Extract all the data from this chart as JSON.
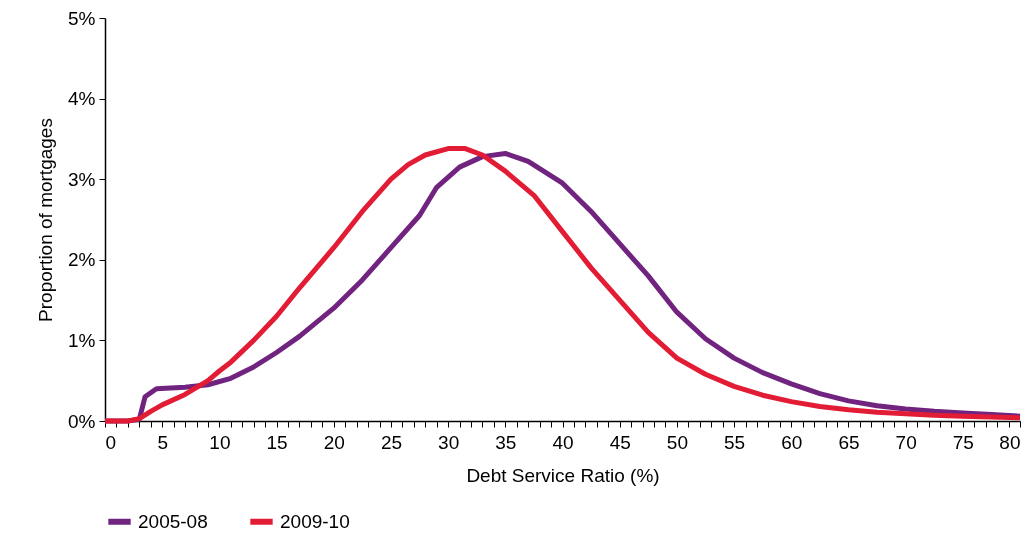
{
  "chart_data": {
    "type": "line",
    "xlabel": "Debt Service Ratio (%)",
    "ylabel": "Proportion of mortgages",
    "xlim": [
      0,
      80
    ],
    "ylim": [
      0,
      5
    ],
    "xticks": [
      0,
      {
        "value": 1,
        "label": null
      },
      {
        "value": 2,
        "label": null
      },
      {
        "value": 3,
        "label": null
      },
      {
        "value": 4,
        "label": null
      },
      5,
      {
        "value": 6,
        "label": null
      },
      {
        "value": 7,
        "label": null
      },
      {
        "value": 8,
        "label": null
      },
      {
        "value": 9,
        "label": null
      },
      10,
      {
        "value": 11,
        "label": null
      },
      {
        "value": 12,
        "label": null
      },
      {
        "value": 13,
        "label": null
      },
      {
        "value": 14,
        "label": null
      },
      15,
      {
        "value": 16,
        "label": null
      },
      {
        "value": 17,
        "label": null
      },
      {
        "value": 18,
        "label": null
      },
      {
        "value": 19,
        "label": null
      },
      20,
      {
        "value": 21,
        "label": null
      },
      {
        "value": 22,
        "label": null
      },
      {
        "value": 23,
        "label": null
      },
      {
        "value": 24,
        "label": null
      },
      25,
      {
        "value": 26,
        "label": null
      },
      {
        "value": 27,
        "label": null
      },
      {
        "value": 28,
        "label": null
      },
      {
        "value": 29,
        "label": null
      },
      30,
      {
        "value": 31,
        "label": null
      },
      {
        "value": 32,
        "label": null
      },
      {
        "value": 33,
        "label": null
      },
      {
        "value": 34,
        "label": null
      },
      35,
      {
        "value": 36,
        "label": null
      },
      {
        "value": 37,
        "label": null
      },
      {
        "value": 38,
        "label": null
      },
      {
        "value": 39,
        "label": null
      },
      40,
      {
        "value": 41,
        "label": null
      },
      {
        "value": 42,
        "label": null
      },
      {
        "value": 43,
        "label": null
      },
      {
        "value": 44,
        "label": null
      },
      45,
      {
        "value": 46,
        "label": null
      },
      {
        "value": 47,
        "label": null
      },
      {
        "value": 48,
        "label": null
      },
      {
        "value": 49,
        "label": null
      },
      50,
      {
        "value": 51,
        "label": null
      },
      {
        "value": 52,
        "label": null
      },
      {
        "value": 53,
        "label": null
      },
      {
        "value": 54,
        "label": null
      },
      55,
      {
        "value": 56,
        "label": null
      },
      {
        "value": 57,
        "label": null
      },
      {
        "value": 58,
        "label": null
      },
      {
        "value": 59,
        "label": null
      },
      60,
      {
        "value": 61,
        "label": null
      },
      {
        "value": 62,
        "label": null
      },
      {
        "value": 63,
        "label": null
      },
      {
        "value": 64,
        "label": null
      },
      65,
      {
        "value": 66,
        "label": null
      },
      {
        "value": 67,
        "label": null
      },
      {
        "value": 68,
        "label": null
      },
      {
        "value": 69,
        "label": null
      },
      70,
      {
        "value": 71,
        "label": null
      },
      {
        "value": 72,
        "label": null
      },
      {
        "value": 73,
        "label": null
      },
      {
        "value": 74,
        "label": null
      },
      75,
      {
        "value": 76,
        "label": null
      },
      {
        "value": 77,
        "label": null
      },
      {
        "value": 78,
        "label": null
      },
      {
        "value": 79,
        "label": null
      },
      80
    ],
    "yticks": [
      {
        "value": 0,
        "label": "0%"
      },
      {
        "value": 1,
        "label": "1%"
      },
      {
        "value": 2,
        "label": "2%"
      },
      {
        "value": 3,
        "label": "3%"
      },
      {
        "value": 4,
        "label": "4%"
      },
      {
        "value": 5,
        "label": "5%"
      }
    ],
    "grid": false,
    "legend": "bottom",
    "marker": "none",
    "line_style": "solid",
    "series": [
      {
        "name": "2005-08",
        "color": "#70237f",
        "x": [
          0,
          2,
          3,
          3.5,
          4.5,
          7,
          9,
          11,
          13,
          15,
          17,
          20,
          22.5,
          25,
          27.5,
          29,
          31,
          33,
          35,
          37,
          40,
          42.5,
          45,
          47.5,
          50,
          52.5,
          55,
          57.5,
          60,
          62.5,
          65,
          67.5,
          70,
          72.5,
          75,
          77.5,
          80
        ],
        "values": [
          0,
          0,
          0.02,
          0.3,
          0.4,
          0.42,
          0.45,
          0.53,
          0.67,
          0.85,
          1.05,
          1.4,
          1.75,
          2.15,
          2.55,
          2.9,
          3.15,
          3.28,
          3.32,
          3.22,
          2.95,
          2.6,
          2.2,
          1.8,
          1.35,
          1.02,
          0.78,
          0.6,
          0.46,
          0.34,
          0.25,
          0.19,
          0.15,
          0.12,
          0.1,
          0.08,
          0.06
        ]
      },
      {
        "name": "2009-10",
        "color": "#e31c35",
        "x": [
          0,
          2,
          3,
          4,
          5,
          7,
          9,
          10,
          11,
          13,
          15,
          17,
          20,
          22.5,
          25,
          26.5,
          28,
          30,
          31.5,
          33,
          35,
          37.5,
          40,
          42.5,
          45,
          47.5,
          50,
          52.5,
          55,
          57.5,
          60,
          62.5,
          65,
          67.5,
          70,
          72.5,
          75,
          77.5,
          80
        ],
        "values": [
          0,
          0,
          0.03,
          0.12,
          0.2,
          0.33,
          0.5,
          0.62,
          0.73,
          1.0,
          1.3,
          1.65,
          2.15,
          2.6,
          3.0,
          3.18,
          3.3,
          3.38,
          3.38,
          3.3,
          3.1,
          2.8,
          2.35,
          1.9,
          1.5,
          1.1,
          0.78,
          0.58,
          0.43,
          0.32,
          0.24,
          0.18,
          0.14,
          0.11,
          0.09,
          0.07,
          0.06,
          0.05,
          0.04
        ]
      }
    ]
  }
}
